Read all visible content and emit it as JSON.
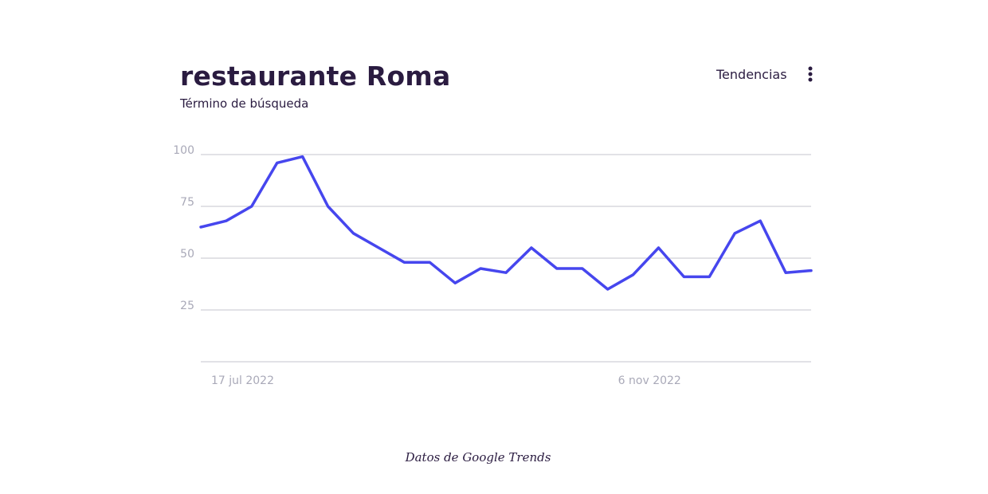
{
  "header": {
    "title": "restaurante Roma",
    "subtitle": "Término de búsqueda",
    "trends_label": "Tendencias",
    "more_icon": "vertical-ellipsis-icon"
  },
  "footer": {
    "source": "Datos de Google Trends"
  },
  "colors": {
    "line": "#4646ee",
    "grid": "#c4c4cc",
    "tick_text": "#a9a9b8",
    "title_text": "#2a1b40"
  },
  "chart_data": {
    "type": "line",
    "title": "restaurante Roma",
    "subtitle": "Término de búsqueda",
    "xlabel": "",
    "ylabel": "",
    "ylim": [
      0,
      100
    ],
    "y_ticks": [
      100,
      75,
      50,
      25
    ],
    "x_tick_labels": [
      {
        "label": "17 jul 2022",
        "index": 0
      },
      {
        "label": "6 nov 2022",
        "index": 16
      }
    ],
    "grid": true,
    "legend": "none",
    "series": [
      {
        "values": [
          65,
          68,
          75,
          96,
          99,
          75,
          62,
          55,
          48,
          48,
          38,
          45,
          43,
          55,
          45,
          45,
          35,
          42,
          55,
          41,
          41,
          62,
          68,
          43,
          44
        ]
      }
    ]
  }
}
